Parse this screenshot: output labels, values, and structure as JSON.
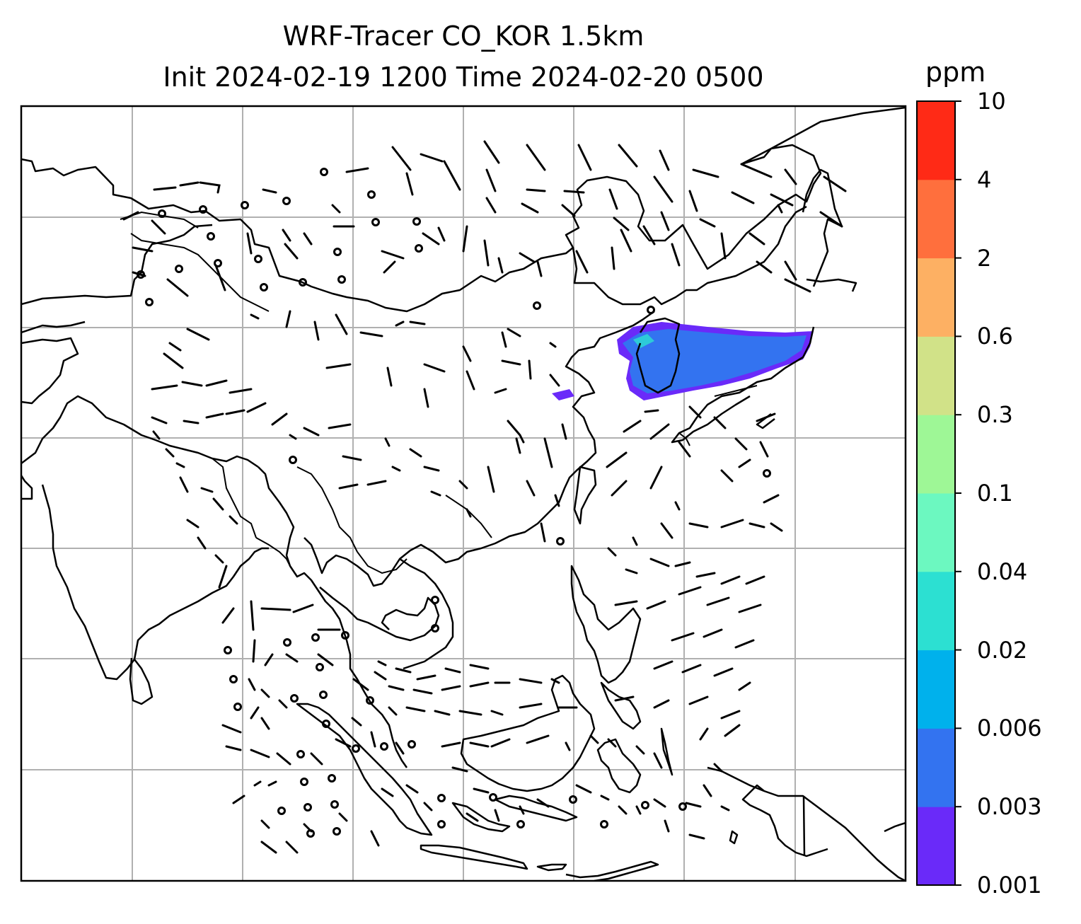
{
  "title": {
    "line1": "WRF-Tracer CO_KOR 1.5km",
    "line2": "Init 2024-02-19 1200 Time 2024-02-20 0500"
  },
  "colorbar": {
    "unit": "ppm",
    "levels": [
      "0.001",
      "0.003",
      "0.006",
      "0.02",
      "0.04",
      "0.1",
      "0.3",
      "0.6",
      "2",
      "4",
      "10"
    ],
    "colors": [
      "#6a2af9",
      "#3373f0",
      "#00b1ec",
      "#2ce0d2",
      "#6cf8c0",
      "#9ef796",
      "#d1e288",
      "#fdb063",
      "#ff6f3d",
      "#ff2a16"
    ]
  },
  "map": {
    "gridlines": true,
    "features": [
      "coastlines",
      "wind-barbs",
      "tracer-concentration"
    ],
    "plume_color_levels": [
      "0.001",
      "0.003"
    ]
  }
}
